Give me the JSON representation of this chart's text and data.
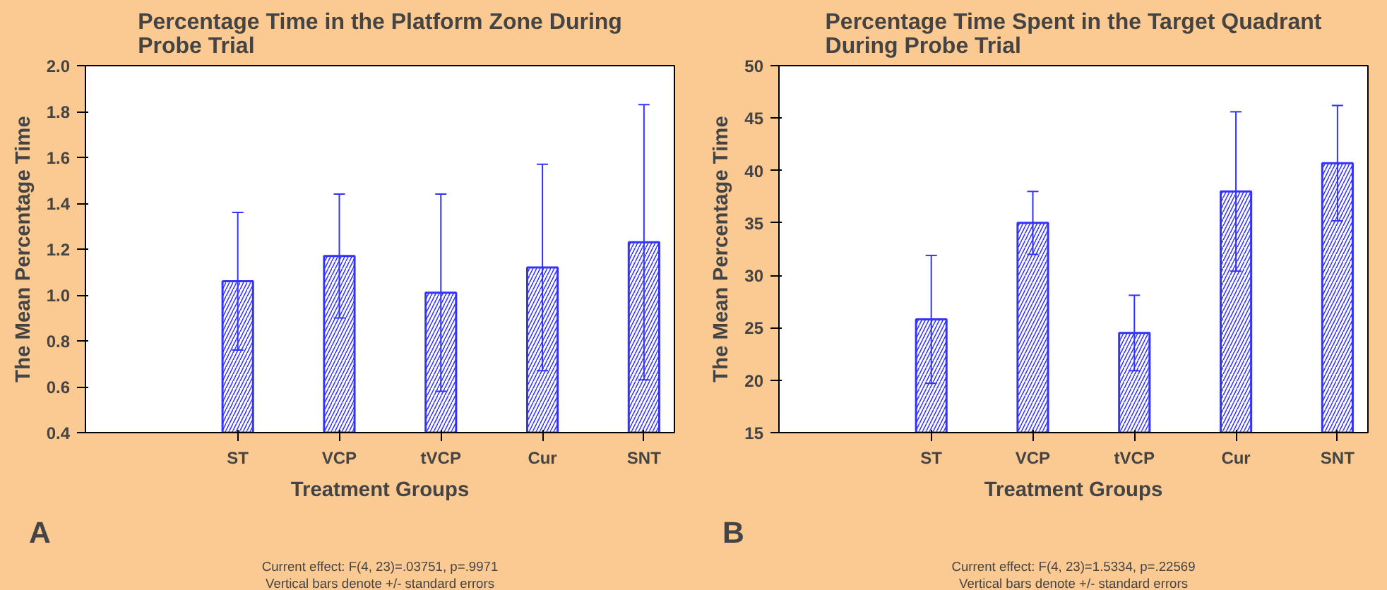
{
  "chart_data": [
    {
      "type": "bar",
      "title": "Percentage Time in the Platform Zone During Probe Trial",
      "xlabel": "Treatment Groups",
      "ylabel": "The Mean Percentage Time",
      "categories": [
        "ST",
        "VCP",
        "tVCP",
        "Cur",
        "SNT"
      ],
      "series": [
        {
          "color": "#3333ff",
          "values": [
            1.06,
            1.17,
            1.01,
            1.12,
            1.23
          ],
          "errors": [
            0.3,
            0.27,
            0.43,
            0.45,
            0.6
          ]
        }
      ],
      "ylim": [
        0.4,
        2.0
      ],
      "yticks": [
        {
          "value": 0.4,
          "label": "0.4"
        },
        {
          "value": 0.6,
          "label": "0.6"
        },
        {
          "value": 0.8,
          "label": "0.8"
        },
        {
          "value": 1.0,
          "label": "1.0"
        },
        {
          "value": 1.2,
          "label": "1.2"
        },
        {
          "value": 1.4,
          "label": "1.4"
        },
        {
          "value": 1.6,
          "label": "1.6"
        },
        {
          "value": 1.8,
          "label": "1.8"
        },
        {
          "value": 2.0,
          "label": "2.0"
        }
      ],
      "grid": false,
      "annotations": [
        "A",
        "Current effect: F(4, 23)=.03751, p=.9971",
        "Vertical bars denote +/- standard errors"
      ]
    },
    {
      "type": "bar",
      "title": "Percentage Time Spent in the Target Quadrant During Probe Trial",
      "xlabel": "Treatment Groups",
      "ylabel": "The Mean Percentage Time",
      "categories": [
        "ST",
        "VCP",
        "tVCP",
        "Cur",
        "SNT"
      ],
      "series": [
        {
          "color": "#3333ff",
          "values": [
            25.8,
            35.0,
            24.5,
            38.0,
            40.7
          ],
          "errors": [
            6.1,
            3.0,
            3.6,
            7.6,
            5.5
          ]
        }
      ],
      "ylim": [
        15,
        50
      ],
      "yticks": [
        15,
        20,
        25,
        30,
        35,
        40,
        45,
        50
      ],
      "grid": false,
      "annotations": [
        "B",
        "Current effect: F(4, 23)=1.5334, p=.22569",
        "Vertical bars denote +/- standard errors"
      ]
    }
  ]
}
